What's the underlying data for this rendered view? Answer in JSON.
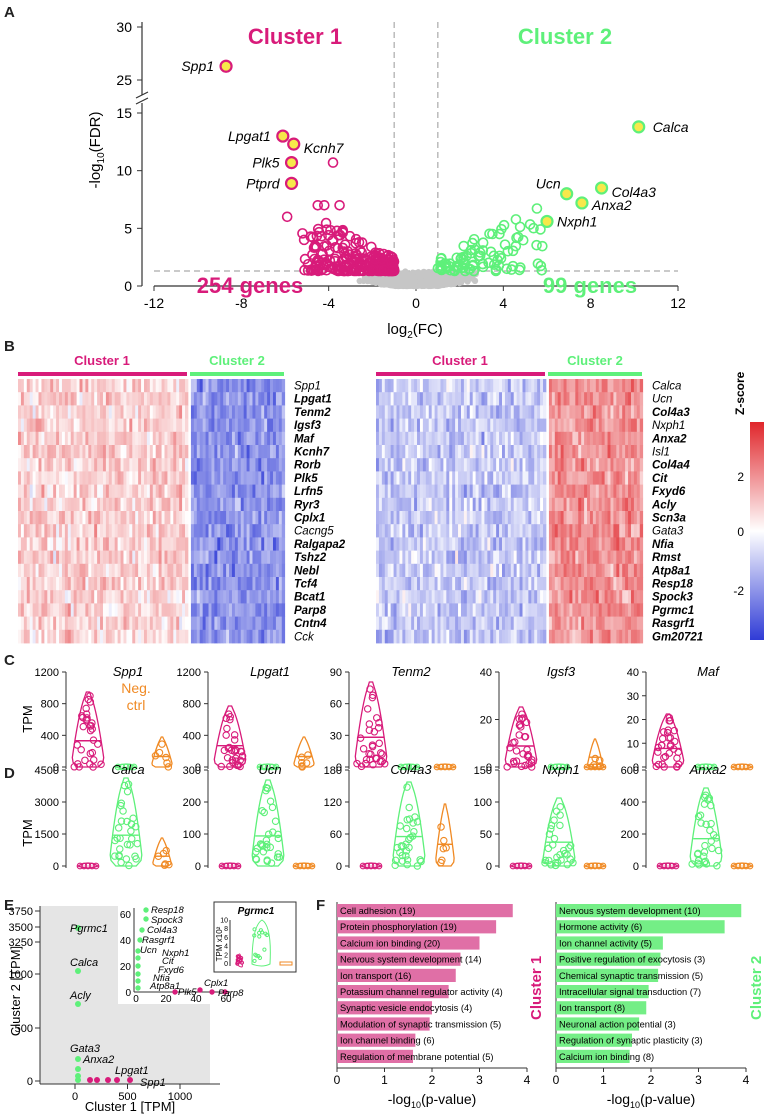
{
  "colors": {
    "cluster1": "#d81b7a",
    "cluster2": "#5ef07a",
    "neg": "#f08a24",
    "gray": "#bdbdbd",
    "heat_high": "#e0262b",
    "heat_mid": "#ffffff",
    "heat_low": "#2f3bd6"
  },
  "panels": {
    "A": "A",
    "B": "B",
    "C": "C",
    "D": "D",
    "E": "E",
    "F": "F"
  },
  "volcano": {
    "cluster1_title": "Cluster 1",
    "cluster2_title": "Cluster 2",
    "cluster1_count": "254 genes",
    "cluster2_count": "99 genes",
    "xlabel": "log2(FC)",
    "ylabel": "-log10(FDR)",
    "xticks": [
      "-12",
      "-8",
      "-4",
      "0",
      "4",
      "8",
      "12"
    ],
    "yticks_low": [
      "0",
      "5",
      "10",
      "15"
    ],
    "yticks_high": [
      "25",
      "30"
    ]
  },
  "heatmap": {
    "left_cluster1": "Cluster 1",
    "left_cluster2": "Cluster 2",
    "right_cluster1": "Cluster 1",
    "right_cluster2": "Cluster 2",
    "legend_title": "Z-score",
    "legend_ticks": [
      "2",
      "0",
      "-2"
    ],
    "left_genes": [
      {
        "name": "Spp1",
        "bold": false
      },
      {
        "name": "Lpgat1",
        "bold": true
      },
      {
        "name": "Tenm2",
        "bold": true
      },
      {
        "name": "Igsf3",
        "bold": true
      },
      {
        "name": "Maf",
        "bold": true
      },
      {
        "name": "Kcnh7",
        "bold": true
      },
      {
        "name": "Rorb",
        "bold": true
      },
      {
        "name": "Plk5",
        "bold": true
      },
      {
        "name": "Lrfn5",
        "bold": true
      },
      {
        "name": "Ryr3",
        "bold": true
      },
      {
        "name": "Cplx1",
        "bold": true
      },
      {
        "name": "Cacng5",
        "bold": false
      },
      {
        "name": "Ralgapa2",
        "bold": true
      },
      {
        "name": "Tshz2",
        "bold": true
      },
      {
        "name": "Nebl",
        "bold": true
      },
      {
        "name": "Tcf4",
        "bold": true
      },
      {
        "name": "Bcat1",
        "bold": true
      },
      {
        "name": "Parp8",
        "bold": true
      },
      {
        "name": "Cntn4",
        "bold": true
      },
      {
        "name": "Cck",
        "bold": false
      }
    ],
    "right_genes": [
      {
        "name": "Calca",
        "bold": false
      },
      {
        "name": "Ucn",
        "bold": false
      },
      {
        "name": "Col4a3",
        "bold": true
      },
      {
        "name": "Nxph1",
        "bold": false
      },
      {
        "name": "Anxa2",
        "bold": true
      },
      {
        "name": "Isl1",
        "bold": false
      },
      {
        "name": "Col4a4",
        "bold": true
      },
      {
        "name": "Cit",
        "bold": true
      },
      {
        "name": "Fxyd6",
        "bold": true
      },
      {
        "name": "Acly",
        "bold": true
      },
      {
        "name": "Scn3a",
        "bold": true
      },
      {
        "name": "Gata3",
        "bold": false
      },
      {
        "name": "Nfia",
        "bold": true
      },
      {
        "name": "Rmst",
        "bold": true
      },
      {
        "name": "Atp8a1",
        "bold": true
      },
      {
        "name": "Resp18",
        "bold": true
      },
      {
        "name": "Spock3",
        "bold": true
      },
      {
        "name": "Pgrmc1",
        "bold": true
      },
      {
        "name": "Rasgrf1",
        "bold": true
      },
      {
        "name": "Gm20721",
        "bold": true
      }
    ]
  },
  "violins": {
    "ylabel_C": "TPM",
    "ylabel_D": "TPM",
    "neg_label_1": "Neg.",
    "neg_label_2": "ctrl",
    "C": [
      {
        "gene": "Spp1",
        "yticks": [
          "0",
          "400",
          "800",
          "1200"
        ]
      },
      {
        "gene": "Lpgat1",
        "yticks": [
          "0",
          "400",
          "800",
          "1200"
        ]
      },
      {
        "gene": "Tenm2",
        "yticks": [
          "0",
          "30",
          "60",
          "90"
        ]
      },
      {
        "gene": "Igsf3",
        "yticks": [
          "0",
          "20",
          "40"
        ]
      },
      {
        "gene": "Maf",
        "yticks": [
          "0",
          "10",
          "20",
          "30",
          "40"
        ]
      }
    ],
    "D": [
      {
        "gene": "Calca",
        "yticks": [
          "0",
          "1500",
          "3000",
          "4500"
        ]
      },
      {
        "gene": "Ucn",
        "yticks": [
          "0",
          "100",
          "200",
          "300"
        ]
      },
      {
        "gene": "Col4a3",
        "yticks": [
          "0",
          "60",
          "120",
          "180"
        ]
      },
      {
        "gene": "Nxph1",
        "yticks": [
          "0",
          "50",
          "100",
          "150"
        ]
      },
      {
        "gene": "Anxa2",
        "yticks": [
          "0",
          "200",
          "400",
          "600"
        ]
      }
    ]
  },
  "scatter": {
    "xlabel": "Cluster 1 [TPM]",
    "ylabel": "Cluster 2 [TPM]",
    "xticks": [
      "0",
      "500",
      "1000"
    ],
    "yticks_low": [
      "0",
      "500",
      "1000"
    ],
    "yticks_high": [
      "3250",
      "3500",
      "3750"
    ],
    "labels": [
      "Pgrmc1",
      "Calca",
      "Acly",
      "Gata3",
      "Anxa2",
      "Lpgat1",
      "Spp1"
    ],
    "inset_labels": [
      "Resp18",
      "Spock3",
      "Col4a3",
      "Rasgrf1",
      "Ucn",
      "Nxph1",
      "Cit",
      "Fxyd6",
      "Nfia",
      "Atp8a1",
      "Plk5",
      "Cplx1",
      "Parp8"
    ],
    "inset_xticks": [
      "0",
      "20",
      "40",
      "60"
    ],
    "inset_yticks": [
      "0",
      "20",
      "40",
      "60"
    ],
    "mini_title": "Pgrmc1",
    "mini_ylabel": "TPM x10²",
    "mini_yticks": [
      "0",
      "2",
      "4",
      "6",
      "8",
      "10"
    ]
  },
  "chart_data": [
    {
      "type": "scatter",
      "title": "",
      "xlabel": "log2(FC)",
      "ylabel": "-log10(FDR)",
      "xlim": [
        -12,
        12
      ],
      "ylim": [
        0,
        30
      ],
      "labeled_points": [
        {
          "label": "Spp1",
          "x": -8.7,
          "y": 26.3,
          "series": "Cluster 1"
        },
        {
          "label": "Lpgat1",
          "x": -6.1,
          "y": 13.0,
          "series": "Cluster 1"
        },
        {
          "label": "Kcnh7",
          "x": -5.6,
          "y": 12.3,
          "series": "Cluster 1"
        },
        {
          "label": "Plk5",
          "x": -5.7,
          "y": 10.7,
          "series": "Cluster 1"
        },
        {
          "label": "Ptprd",
          "x": -5.7,
          "y": 8.9,
          "series": "Cluster 1"
        },
        {
          "label": "Calca",
          "x": 10.2,
          "y": 13.8,
          "series": "Cluster 2"
        },
        {
          "label": "Ucn",
          "x": 6.9,
          "y": 8.0,
          "series": "Cluster 2"
        },
        {
          "label": "Col4a3",
          "x": 8.5,
          "y": 8.5,
          "series": "Cluster 2"
        },
        {
          "label": "Anxa2",
          "x": 7.6,
          "y": 7.2,
          "series": "Cluster 2"
        },
        {
          "label": "Nxph1",
          "x": 6.0,
          "y": 5.6,
          "series": "Cluster 2"
        }
      ],
      "series": [
        {
          "name": "Cluster 1"
        },
        {
          "name": "Cluster 2"
        }
      ],
      "thresholds": {
        "fdr_y": 1.3,
        "fc_x": [
          -1,
          1
        ]
      }
    },
    {
      "type": "bar",
      "title": "Cluster 1",
      "xlabel": "-log10(p-value)",
      "xlim": [
        0,
        4
      ],
      "categories": [
        "Cell adhesion (19)",
        "Protein phosphorylation (19)",
        "Calcium ion binding (20)",
        "Nervous system development (14)",
        "Ion transport (16)",
        "Potassium channel regulator activity (4)",
        "Synaptic vesicle endocytosis (4)",
        "Modulation of synaptic transmission (5)",
        "Ion channel binding (6)",
        "Regulation of membrane potential (5)"
      ],
      "values": [
        3.7,
        3.35,
        3.0,
        2.6,
        2.5,
        2.35,
        2.0,
        1.95,
        1.65,
        1.6
      ]
    },
    {
      "type": "bar",
      "title": "Cluster 2",
      "xlabel": "-log10(p-value)",
      "xlim": [
        0,
        4
      ],
      "categories": [
        "Nervous system development (10)",
        "Hormone activity (6)",
        "Ion channel activity (5)",
        "Positive regulation of exocytosis (3)",
        "Chemical synaptic transmission (5)",
        "Intracellular signal transduction (7)",
        "Ion transport (8)",
        "Neuronal action potential (3)",
        "Regulation of synaptic plasticity (3)",
        "Calcium ion binding (8)"
      ],
      "values": [
        3.9,
        3.55,
        2.25,
        2.2,
        2.15,
        1.95,
        1.9,
        1.75,
        1.6,
        1.55
      ]
    }
  ]
}
